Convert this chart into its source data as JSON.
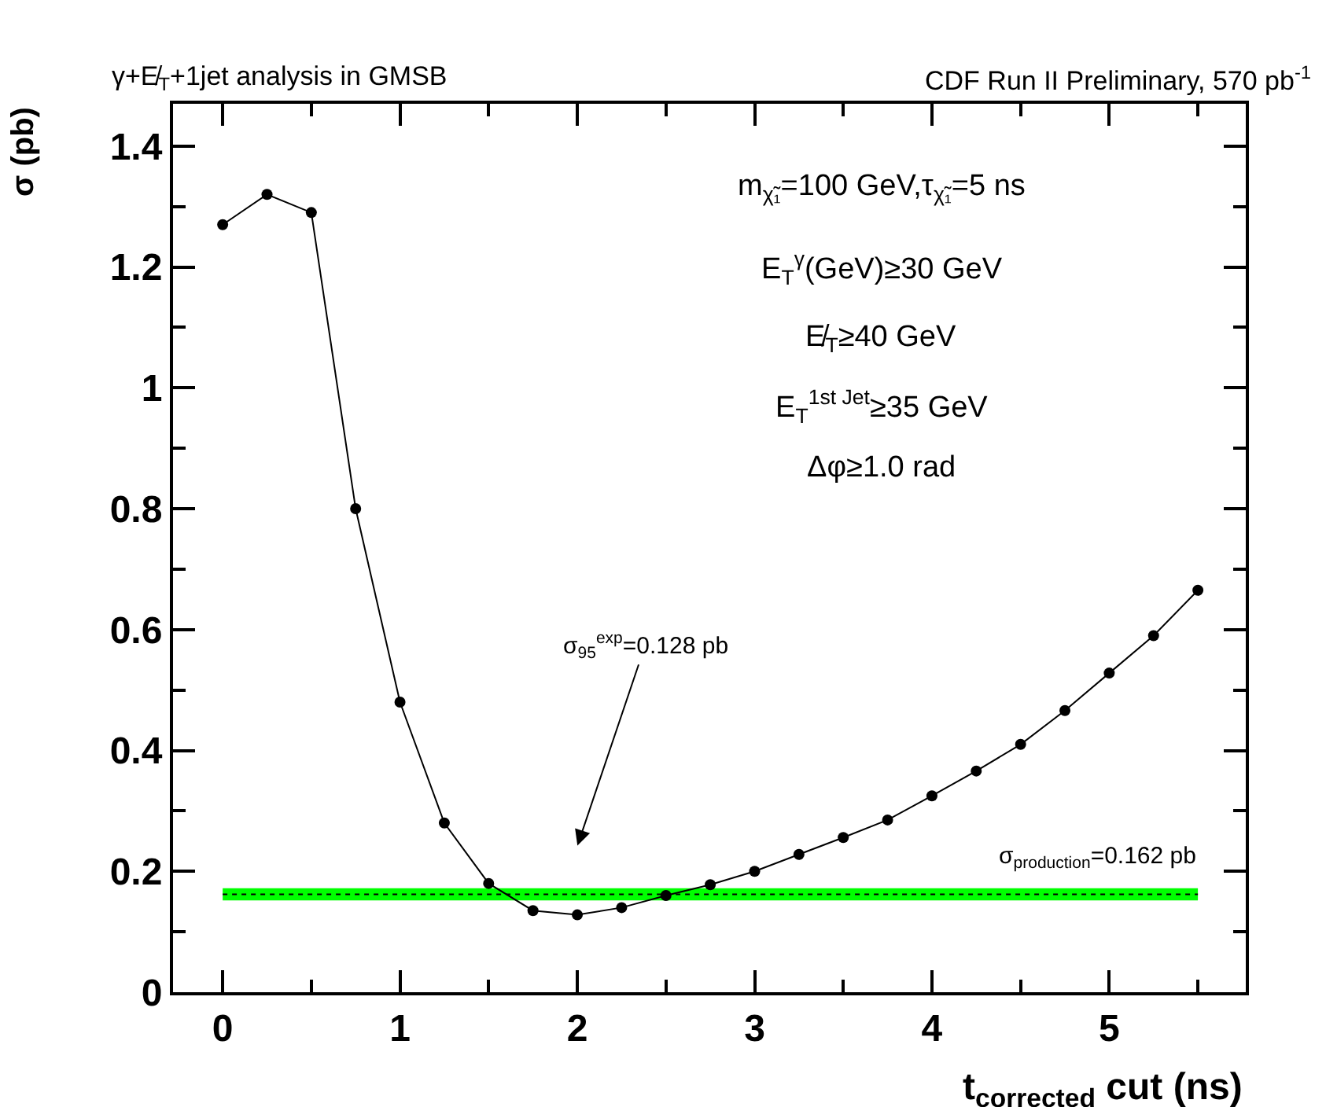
{
  "chart_data": {
    "type": "line",
    "title": "γ+E̸$_{T}$+1jet analysis in GMSB",
    "subtitle": "CDF Run II Preliminary, 570 pb$^{-1}$",
    "xlabel": "t$_{corrected}$ cut (ns)",
    "ylabel": "σ (pb)",
    "x": [
      0,
      0.25,
      0.5,
      0.75,
      1,
      1.25,
      1.5,
      1.75,
      2,
      2.25,
      2.5,
      2.75,
      3,
      3.25,
      3.5,
      3.75,
      4,
      4.25,
      4.5,
      4.75,
      5,
      5.25,
      5.5
    ],
    "series": [
      {
        "color": "#000000",
        "values": [
          1.27,
          1.32,
          1.29,
          0.8,
          0.48,
          0.28,
          0.18,
          0.135,
          0.128,
          0.14,
          0.16,
          0.178,
          0.2,
          0.228,
          0.256,
          0.285,
          0.325,
          0.366,
          0.41,
          0.466,
          0.528,
          0.59,
          0.665
        ]
      }
    ],
    "xlim": [
      -0.28,
      5.77
    ],
    "ylim": [
      0,
      1.47
    ],
    "xticks": [
      0,
      1,
      2,
      3,
      4,
      5
    ],
    "yticks": [
      0,
      0.2,
      0.4,
      0.6,
      0.8,
      1,
      1.2,
      1.4
    ],
    "grid": false,
    "marker": "circle",
    "line_style": "solid",
    "bands": [
      {
        "axis": "y",
        "from": 0.152,
        "to": 0.172,
        "label": "σ$_{production}$=0.162 pb",
        "color": "#00ff00"
      }
    ],
    "ref_lines": [
      {
        "axis": "y",
        "value": 0.162,
        "label": null,
        "color": "#000000",
        "line_style": "dotted"
      }
    ],
    "annotations": [
      "σ$_{95}$$^{exp}$=0.128 pb",
      "m$_{χ̃₁}$=100 GeV,τ$_{χ̃₁}$=5 ns",
      "E$_{T}$$^{γ}$(GeV)≥30 GeV",
      "E̸$_{T}$≥40 GeV",
      "E$_{T}$$^{1st Jet}$≥35 GeV",
      "Δφ≥1.0 rad"
    ]
  }
}
